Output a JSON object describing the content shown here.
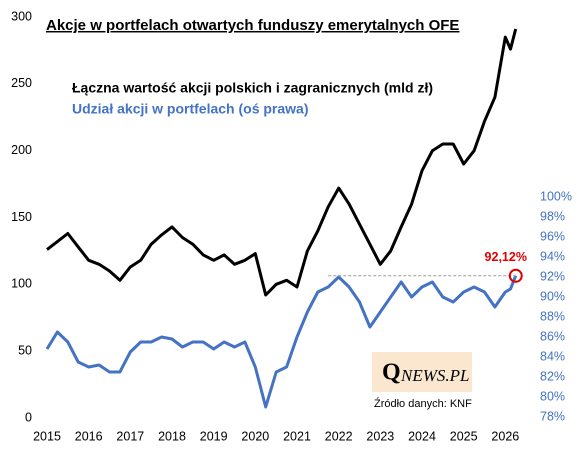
{
  "chart_data": {
    "type": "line",
    "title": "Akcje w portfelach otwartych funduszy emerytalnych OFE",
    "x": [
      2015,
      2015.25,
      2015.5,
      2015.75,
      2016,
      2016.25,
      2016.5,
      2016.75,
      2017,
      2017.25,
      2017.5,
      2017.75,
      2018,
      2018.25,
      2018.5,
      2018.75,
      2019,
      2019.25,
      2019.5,
      2019.75,
      2020,
      2020.25,
      2020.5,
      2020.75,
      2021,
      2021.25,
      2021.5,
      2021.75,
      2022,
      2022.25,
      2022.5,
      2022.75,
      2023,
      2023.25,
      2023.5,
      2023.75,
      2024,
      2024.25,
      2024.5,
      2024.75,
      2025,
      2025.25,
      2025.5,
      2025.75,
      2026,
      2026.125,
      2026.25
    ],
    "series": [
      {
        "name": "Łączna wartość akcji polskich i zagranicznych (mld zł)",
        "color": "#000000",
        "values": [
          126,
          132,
          138,
          128,
          118,
          115,
          110,
          103,
          113,
          118,
          130,
          137,
          143,
          135,
          130,
          122,
          118,
          122,
          115,
          118,
          123,
          92,
          100,
          103,
          98,
          125,
          140,
          158,
          172,
          160,
          145,
          130,
          115,
          125,
          143,
          160,
          185,
          200,
          205,
          205,
          190,
          200,
          222,
          240,
          285,
          276,
          291
        ]
      },
      {
        "name": "Udział akcji w portfelach (oś prawa)",
        "color": "#4472c4",
        "axis": "y2",
        "values": [
          84.8,
          86.5,
          85.5,
          83.5,
          83.0,
          83.2,
          82.5,
          82.5,
          84.5,
          85.5,
          85.5,
          86.0,
          85.8,
          85.0,
          85.5,
          85.5,
          84.8,
          85.5,
          85.0,
          85.5,
          83.0,
          79.0,
          82.5,
          83.0,
          86.0,
          88.5,
          90.5,
          91.0,
          92.0,
          91.0,
          89.5,
          87.0,
          88.5,
          90.0,
          91.5,
          90.0,
          91.0,
          91.5,
          90.0,
          89.5,
          90.5,
          91.0,
          90.5,
          89.0,
          90.5,
          90.8,
          92.12
        ],
        "value_labels": [
          null,
          null,
          null,
          null,
          null,
          null,
          null,
          null,
          null,
          null,
          null,
          null,
          null,
          null,
          null,
          null,
          null,
          null,
          null,
          null,
          null,
          null,
          null,
          null,
          null,
          null,
          null,
          null,
          null,
          null,
          null,
          null,
          null,
          null,
          null,
          null,
          null,
          null,
          null,
          null,
          null,
          null,
          null,
          null,
          null,
          null,
          "92,12%"
        ]
      }
    ],
    "xlim": [
      2015,
      2026.4
    ],
    "xticks": [
      2015,
      2016,
      2017,
      2018,
      2019,
      2020,
      2021,
      2022,
      2023,
      2024,
      2025,
      2026
    ],
    "ylim": [
      0,
      300
    ],
    "yticks": [
      0,
      50,
      100,
      150,
      200,
      250,
      300
    ],
    "y2lim": [
      78,
      100
    ],
    "y2ticks": [
      {
        "value": 78,
        "label": "78%"
      },
      {
        "value": 80,
        "label": "80%"
      },
      {
        "value": 82,
        "label": "82%"
      },
      {
        "value": 84,
        "label": "84%"
      },
      {
        "value": 86,
        "label": "86%"
      },
      {
        "value": 88,
        "label": "88%"
      },
      {
        "value": 90,
        "label": "90%"
      },
      {
        "value": 92,
        "label": "92%"
      },
      {
        "value": 94,
        "label": "94%"
      },
      {
        "value": 96,
        "label": "96%"
      },
      {
        "value": 98,
        "label": "98%"
      },
      {
        "value": 100,
        "label": "100%"
      }
    ],
    "logo_q": "Q",
    "logo_rest": "NEWS.PL",
    "source": "Źródło danych: KNF",
    "grid": false
  }
}
